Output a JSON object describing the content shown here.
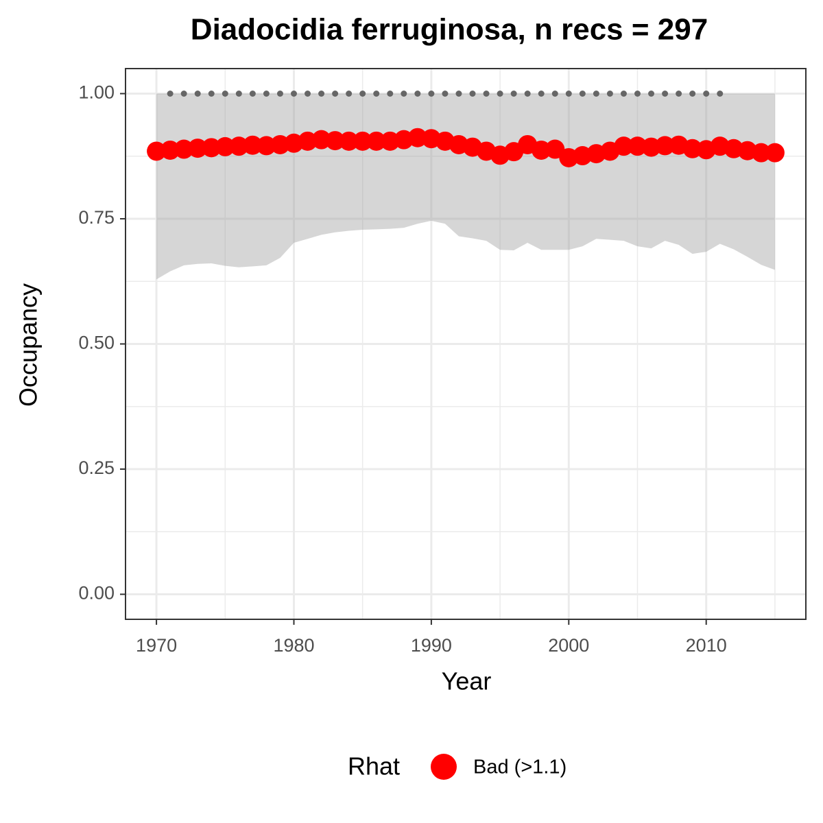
{
  "chart_data": {
    "type": "scatter",
    "title": "Diadocidia ferruginosa, n recs = 297",
    "x_label": "Year",
    "y_label": "Occupancy",
    "legend_title": "Rhat",
    "legend_position": "bottom",
    "xlim": [
      1967.75,
      2017.25
    ],
    "ylim": [
      -0.05,
      1.05
    ],
    "xticks": [
      1970,
      1980,
      1990,
      2000,
      2010
    ],
    "minor_xticks": [
      1975,
      1985,
      1995,
      2005,
      2015
    ],
    "yticks": [
      {
        "value": 0,
        "label": "0.00"
      },
      {
        "value": 0.25,
        "label": "0.25"
      },
      {
        "value": 0.5,
        "label": "0.50"
      },
      {
        "value": 0.75,
        "label": "0.75"
      },
      {
        "value": 1,
        "label": "1.00"
      }
    ],
    "minor_yticks": [
      0.125,
      0.375,
      0.625,
      0.875
    ],
    "grid": true,
    "ribbon_color": "#999999",
    "series": [
      {
        "name": "Bad (>1.1)",
        "color": "#ff0000",
        "x": [
          1970,
          1971,
          1972,
          1973,
          1974,
          1975,
          1976,
          1977,
          1978,
          1979,
          1980,
          1981,
          1982,
          1983,
          1984,
          1985,
          1986,
          1987,
          1988,
          1989,
          1990,
          1991,
          1992,
          1993,
          1994,
          1995,
          1996,
          1997,
          1998,
          1999,
          2000,
          2001,
          2002,
          2003,
          2004,
          2005,
          2006,
          2007,
          2008,
          2009,
          2010,
          2011,
          2012,
          2013,
          2014,
          2015
        ],
        "values": [
          0.885,
          0.887,
          0.889,
          0.891,
          0.892,
          0.894,
          0.895,
          0.897,
          0.896,
          0.898,
          0.901,
          0.905,
          0.908,
          0.906,
          0.905,
          0.905,
          0.905,
          0.905,
          0.908,
          0.912,
          0.91,
          0.905,
          0.898,
          0.893,
          0.885,
          0.877,
          0.884,
          0.898,
          0.887,
          0.889,
          0.872,
          0.876,
          0.88,
          0.885,
          0.895,
          0.895,
          0.893,
          0.896,
          0.897,
          0.89,
          0.888,
          0.895,
          0.89,
          0.886,
          0.882,
          0.882
        ],
        "ci_upper": [
          1,
          1,
          1,
          1,
          1,
          1,
          1,
          1,
          1,
          1,
          1,
          1,
          1,
          1,
          1,
          1,
          1,
          1,
          1,
          1,
          1,
          1,
          1,
          1,
          1,
          1,
          1,
          1,
          1,
          1,
          1,
          1,
          1,
          1,
          1,
          1,
          1,
          1,
          1,
          1,
          1,
          1,
          1,
          1,
          1,
          1
        ],
        "ci_lower": [
          0.629,
          0.645,
          0.657,
          0.66,
          0.661,
          0.656,
          0.653,
          0.655,
          0.657,
          0.672,
          0.702,
          0.71,
          0.718,
          0.723,
          0.726,
          0.728,
          0.729,
          0.73,
          0.732,
          0.74,
          0.746,
          0.74,
          0.715,
          0.711,
          0.706,
          0.688,
          0.687,
          0.702,
          0.688,
          0.688,
          0.688,
          0.695,
          0.71,
          0.708,
          0.706,
          0.695,
          0.691,
          0.706,
          0.698,
          0.68,
          0.684,
          0.7,
          0.689,
          0.674,
          0.658,
          0.648
        ]
      }
    ],
    "dots": {
      "color": "#666666",
      "x": [
        1971,
        1972,
        1973,
        1974,
        1975,
        1976,
        1977,
        1978,
        1979,
        1980,
        1981,
        1982,
        1983,
        1984,
        1985,
        1986,
        1987,
        1988,
        1989,
        1990,
        1991,
        1992,
        1993,
        1994,
        1995,
        1996,
        1997,
        1998,
        1999,
        2000,
        2001,
        2002,
        2003,
        2004,
        2005,
        2006,
        2007,
        2008,
        2009,
        2010,
        2011
      ],
      "values": [
        1,
        1,
        1,
        1,
        1,
        1,
        1,
        1,
        1,
        1,
        1,
        1,
        1,
        1,
        1,
        1,
        1,
        1,
        1,
        1,
        1,
        1,
        1,
        1,
        1,
        1,
        1,
        1,
        1,
        1,
        1,
        1,
        1,
        1,
        1,
        1,
        1,
        1,
        1,
        1,
        1
      ]
    }
  }
}
